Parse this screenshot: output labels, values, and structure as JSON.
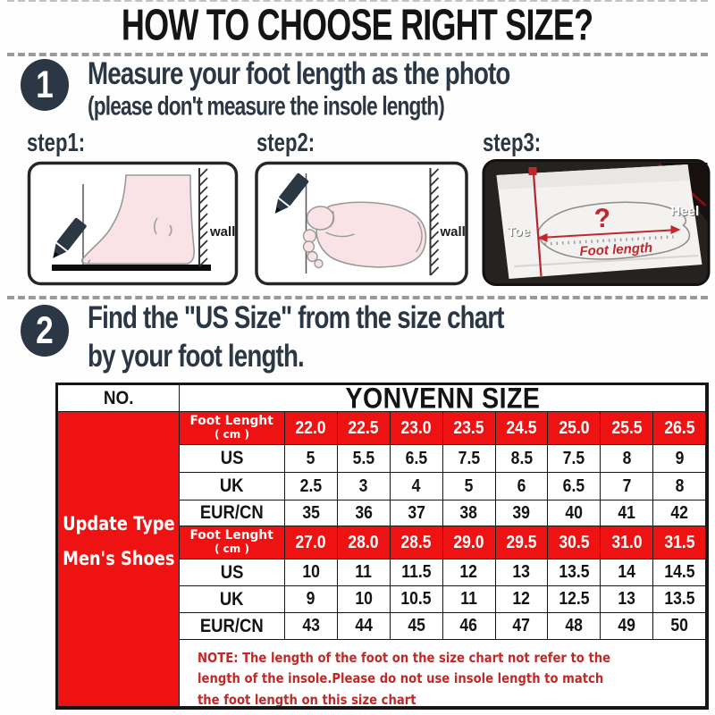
{
  "title": "HOW TO CHOOSE RIGHT SIZE?",
  "section1": {
    "number": "1",
    "heading": "Measure your foot length as the photo",
    "subheading": "(please don't measure the insole length)",
    "step1_label": "step1:",
    "step2_label": "step2:",
    "step3_label": "step3:",
    "wall_label": "wall",
    "toe_label": "Toe",
    "heel_label": "Heel",
    "question_mark": "?",
    "foot_length_label": "Foot length"
  },
  "section2": {
    "number": "2",
    "heading_line1": "Find the \"US Size\" from the size chart",
    "heading_line2": "by your foot length."
  },
  "table": {
    "no_header": "NO.",
    "brand_header": "YONVENN SIZE",
    "product_line1": "Update Type",
    "product_line2": "Men's Shoes",
    "rows": [
      {
        "label": "Foot Lenght",
        "sublabel": "( cm )",
        "style": "red",
        "values": [
          "22.0",
          "22.5",
          "23.0",
          "23.5",
          "24.5",
          "25.0",
          "25.5",
          "26.5"
        ]
      },
      {
        "label": "US",
        "sublabel": "",
        "style": "white",
        "values": [
          "5",
          "5.5",
          "6.5",
          "7.5",
          "8.5",
          "7.5",
          "8",
          "9"
        ]
      },
      {
        "label": "UK",
        "sublabel": "",
        "style": "white",
        "values": [
          "2.5",
          "3",
          "4",
          "5",
          "6",
          "6.5",
          "7",
          "8"
        ]
      },
      {
        "label": "EUR/CN",
        "sublabel": "",
        "style": "white",
        "values": [
          "35",
          "36",
          "37",
          "38",
          "39",
          "40",
          "41",
          "42"
        ]
      },
      {
        "label": "Foot Lenght",
        "sublabel": "( cm )",
        "style": "red",
        "values": [
          "27.0",
          "28.0",
          "28.5",
          "29.0",
          "29.5",
          "30.5",
          "31.0",
          "31.5"
        ]
      },
      {
        "label": "US",
        "sublabel": "",
        "style": "white",
        "values": [
          "10",
          "11",
          "11.5",
          "12",
          "13",
          "13.5",
          "14",
          "14.5"
        ]
      },
      {
        "label": "UK",
        "sublabel": "",
        "style": "white",
        "values": [
          "9",
          "10",
          "10.5",
          "11",
          "12",
          "12.5",
          "13",
          "13.5"
        ]
      },
      {
        "label": "EUR/CN",
        "sublabel": "",
        "style": "white",
        "values": [
          "43",
          "44",
          "45",
          "46",
          "47",
          "48",
          "49",
          "50"
        ]
      }
    ],
    "note": "NOTE: The length of the foot on the size chart not refer to the length of the insole.Please do not use insole length to match the foot length on this size chart"
  },
  "colors": {
    "accent_red": "#ee1212",
    "heading_dark": "#2b3744",
    "note_red": "#bf2a28",
    "foot_pink": "#f9e3e6",
    "title_black": "#141414"
  }
}
